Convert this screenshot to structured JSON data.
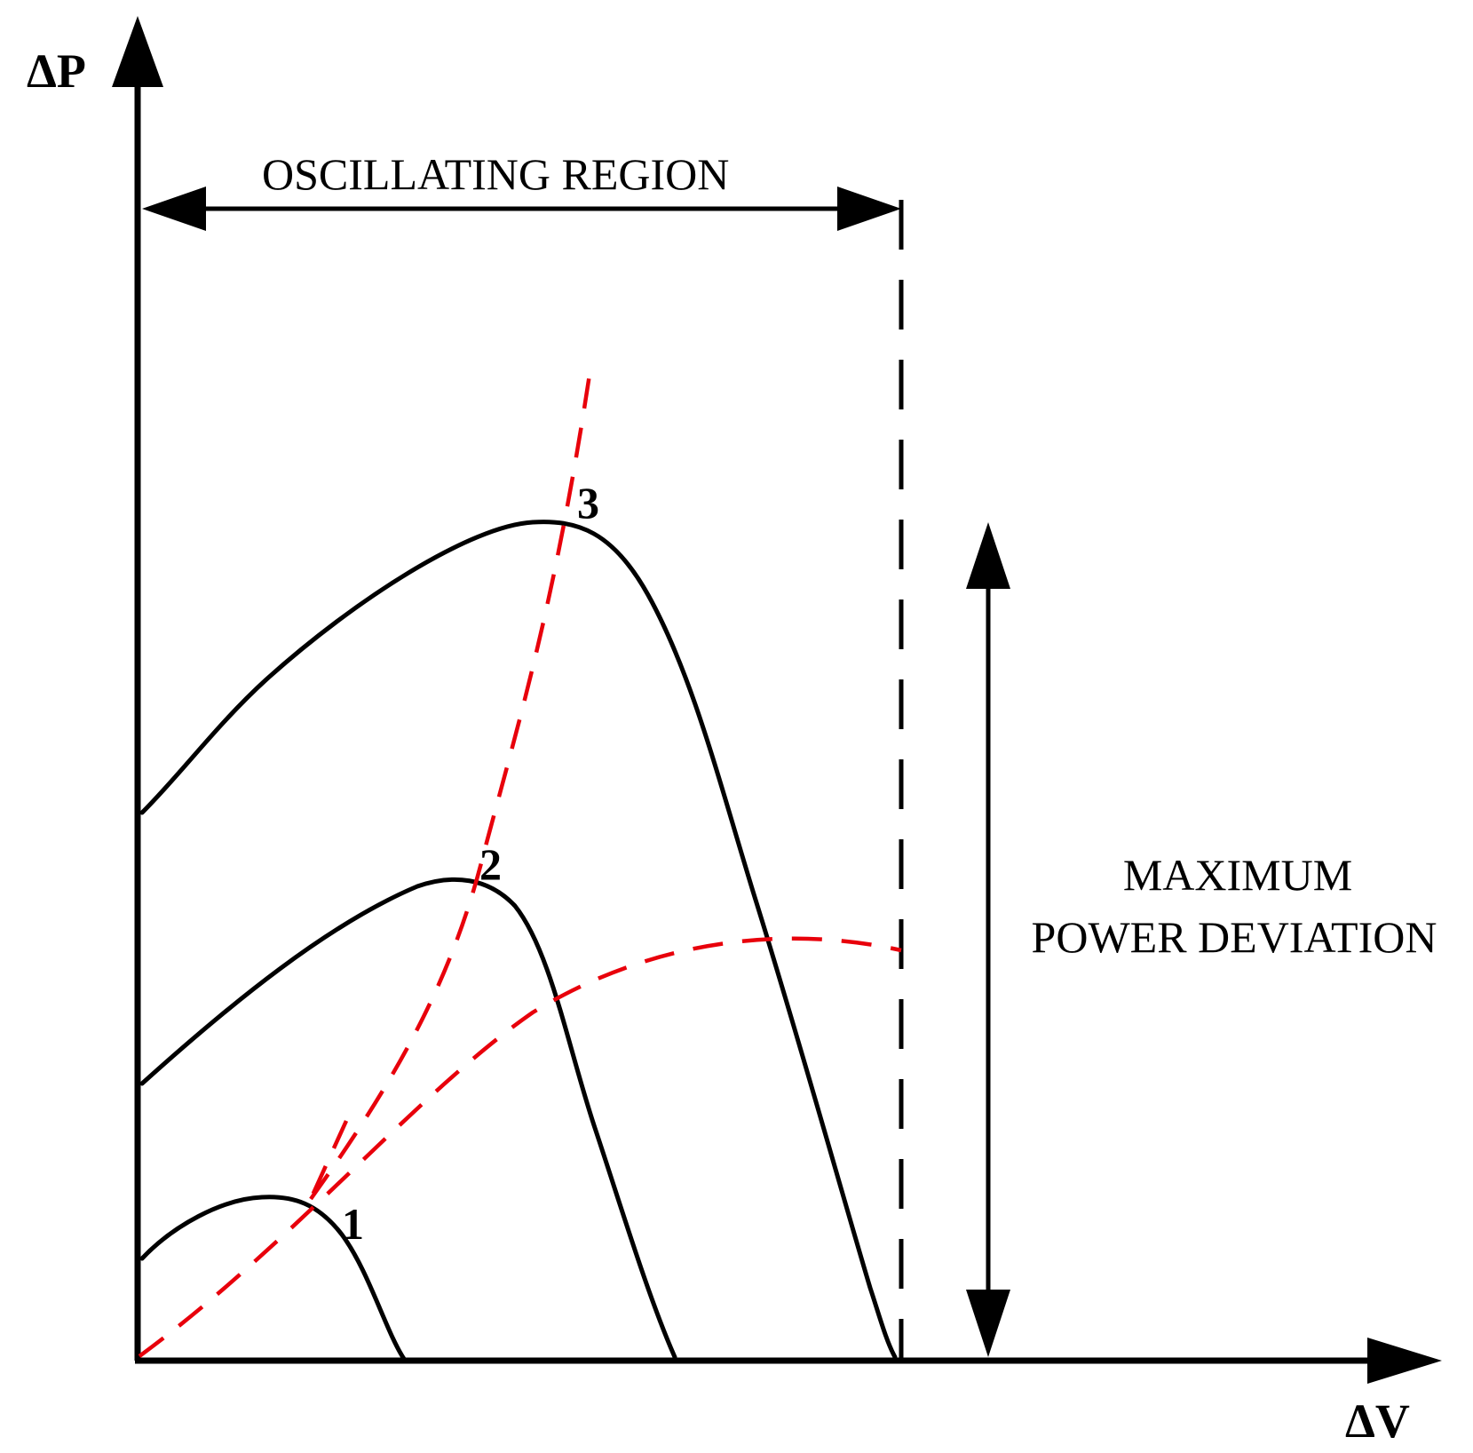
{
  "axes": {
    "y_label": "ΔP",
    "x_label": "ΔV"
  },
  "annotations": {
    "oscillating_region": "OSCILLATING REGION",
    "max_power_line1": "MAXIMUM",
    "max_power_line2": "POWER DEVIATION"
  },
  "curves": [
    {
      "label": "1"
    },
    {
      "label": "2"
    },
    {
      "label": "3"
    }
  ],
  "colors": {
    "curve": "#000000",
    "locus": "#e8000b",
    "background": "#ffffff"
  }
}
